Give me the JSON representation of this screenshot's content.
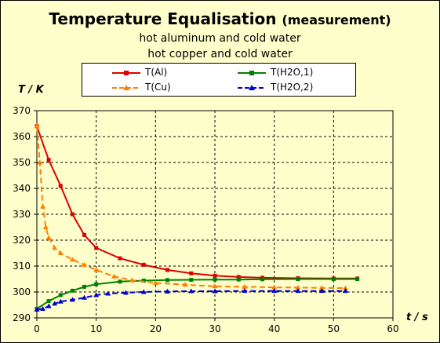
{
  "chart_data": {
    "type": "line",
    "title": "Temperature Equalisation",
    "title_suffix": "(measurement)",
    "subtitles": [
      "hot aluminum and cold water",
      "hot copper and cold water"
    ],
    "xlabel": "t / s",
    "ylabel": "T / K",
    "xlim": [
      0,
      60
    ],
    "ylim": [
      290,
      370
    ],
    "xticks": [
      0,
      10,
      20,
      30,
      40,
      50,
      60
    ],
    "yticks": [
      290,
      300,
      310,
      320,
      330,
      340,
      350,
      360,
      370
    ],
    "grid": true,
    "legend_position": "top",
    "series": [
      {
        "name": "T(Al)",
        "color": "#dd0000",
        "dash": "solid",
        "marker": "square",
        "x": [
          0,
          2,
          4,
          6,
          8,
          10,
          14,
          18,
          22,
          26,
          30,
          34,
          38,
          44,
          50,
          54
        ],
        "y": [
          364,
          351,
          341,
          330,
          322,
          317,
          313,
          310.5,
          308.5,
          307.2,
          306.3,
          305.8,
          305.5,
          305.3,
          305.2,
          305.2
        ]
      },
      {
        "name": "T(H2O,1)",
        "color": "#008000",
        "dash": "solid",
        "marker": "square",
        "x": [
          0,
          2,
          4,
          6,
          8,
          10,
          14,
          18,
          22,
          26,
          30,
          34,
          38,
          44,
          50,
          54
        ],
        "y": [
          293.5,
          296.5,
          298.8,
          300.5,
          302,
          303,
          304,
          304.4,
          304.6,
          304.7,
          304.8,
          304.8,
          304.9,
          305,
          305,
          305
        ]
      },
      {
        "name": "T(Cu)",
        "color": "#ff8000",
        "dash": "dashed",
        "marker": "triangle",
        "x": [
          0,
          0.5,
          1,
          1.5,
          2,
          3,
          4,
          6,
          8,
          10,
          13,
          16,
          20,
          25,
          30,
          35,
          40,
          44,
          48,
          52
        ],
        "y": [
          364,
          350,
          333,
          325,
          321,
          317,
          315,
          312.5,
          310.5,
          308.5,
          306,
          304.5,
          303.5,
          302.8,
          302.2,
          302,
          301.8,
          301.7,
          301.6,
          301.5
        ]
      },
      {
        "name": "T(H2O,2)",
        "color": "#0000cc",
        "dash": "dashed",
        "marker": "triangle",
        "x": [
          0,
          1,
          2,
          3,
          4,
          6,
          8,
          10,
          12,
          15,
          18,
          22,
          26,
          30,
          35,
          40,
          44,
          48,
          52
        ],
        "y": [
          293.2,
          293.5,
          294.5,
          295.5,
          296.3,
          297,
          297.8,
          298.8,
          299.4,
          299.7,
          300,
          300.2,
          300.3,
          300.3,
          300.4,
          300.4,
          300.4,
          300.4,
          300.4
        ]
      }
    ]
  }
}
